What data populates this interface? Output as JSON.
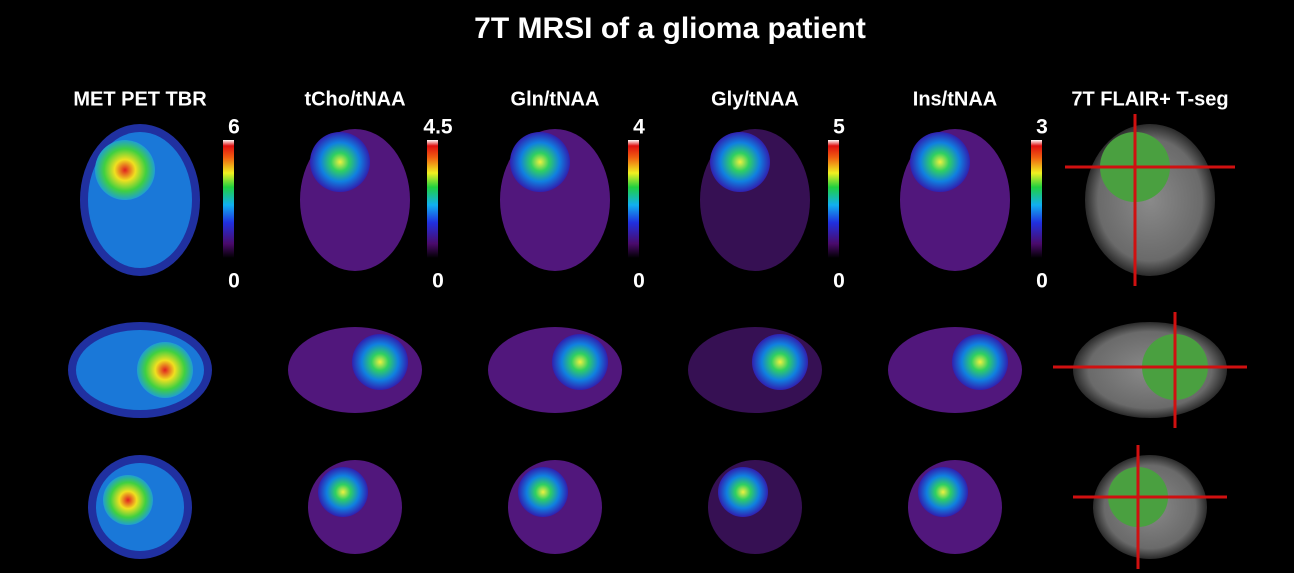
{
  "title": "7T MRSI of a glioma patient",
  "columns": [
    {
      "header": "MET PET TBR",
      "scale_max": 6,
      "scale_min": 0
    },
    {
      "header": "tCho/tNAA",
      "scale_max": 4.5,
      "scale_min": 0
    },
    {
      "header": "Gln/tNAA",
      "scale_max": 4,
      "scale_min": 0
    },
    {
      "header": "Gly/tNAA",
      "scale_max": 5,
      "scale_min": 0
    },
    {
      "header": "Ins/tNAA",
      "scale_max": 3,
      "scale_min": 0
    },
    {
      "header": "7T FLAIR+ T-seg"
    }
  ]
}
